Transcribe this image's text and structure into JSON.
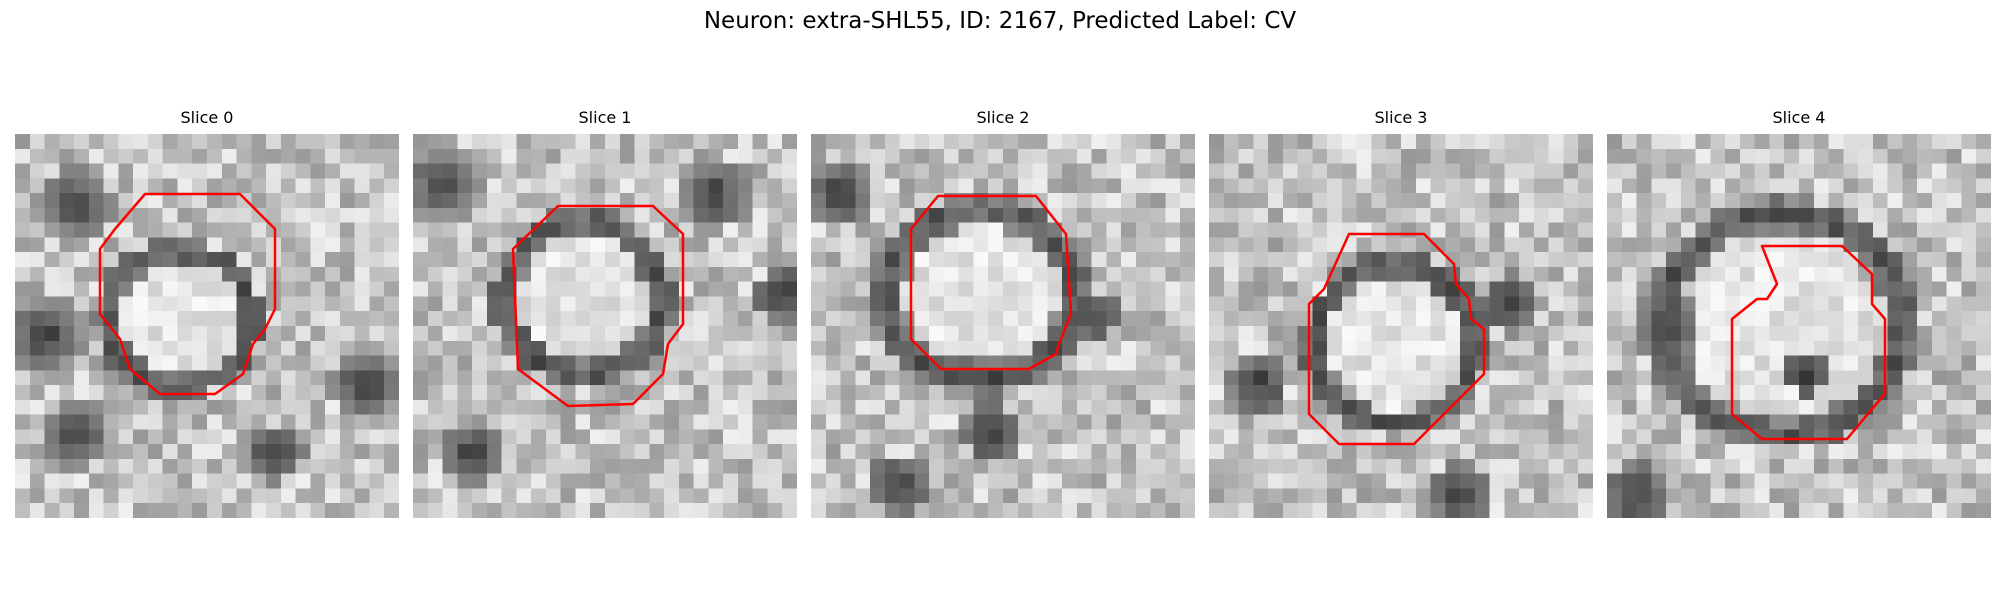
{
  "title": "Neuron: extra-SHL55, ID: 2167, Predicted Label: CV",
  "colors": {
    "contour": "#ff0000",
    "background": "#ffffff"
  },
  "panels": [
    {
      "label": "Slice 0"
    },
    {
      "label": "Slice 1"
    },
    {
      "label": "Slice 2"
    },
    {
      "label": "Slice 3"
    },
    {
      "label": "Slice 4"
    }
  ]
}
